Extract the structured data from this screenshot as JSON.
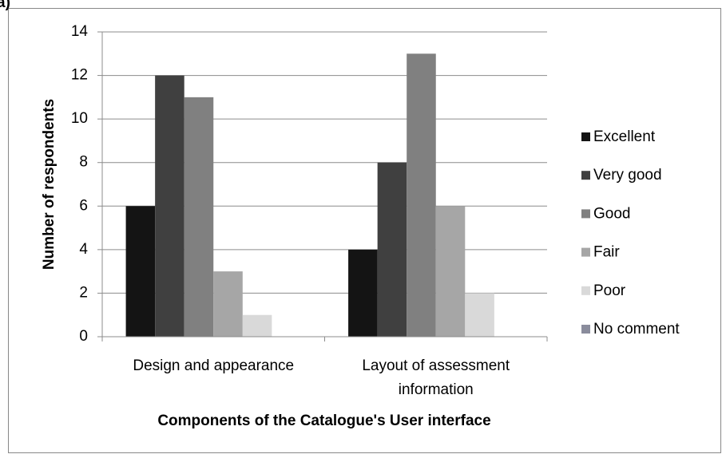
{
  "chart_data": {
    "type": "bar",
    "panel_label": "a)",
    "ylabel": "Number of respondents",
    "xlabel": "Components of the Catalogue's User interface",
    "categories": [
      "Design and appearance",
      "Layout of assessment information"
    ],
    "series": [
      {
        "name": "Excellent",
        "color": "#141414",
        "values": [
          6,
          4
        ]
      },
      {
        "name": "Very good",
        "color": "#404040",
        "values": [
          12,
          8
        ]
      },
      {
        "name": "Good",
        "color": "#808080",
        "values": [
          11,
          13
        ]
      },
      {
        "name": "Fair",
        "color": "#a6a6a6",
        "values": [
          3,
          6
        ]
      },
      {
        "name": "Poor",
        "color": "#d9d9d9",
        "values": [
          1,
          2
        ]
      },
      {
        "name": "No comment",
        "color": "#8a8c9c",
        "values": [
          0,
          0
        ]
      }
    ],
    "ylim": [
      0,
      14
    ],
    "yticks": [
      0,
      2,
      4,
      6,
      8,
      10,
      12,
      14
    ],
    "grid": true,
    "legend": "right"
  }
}
